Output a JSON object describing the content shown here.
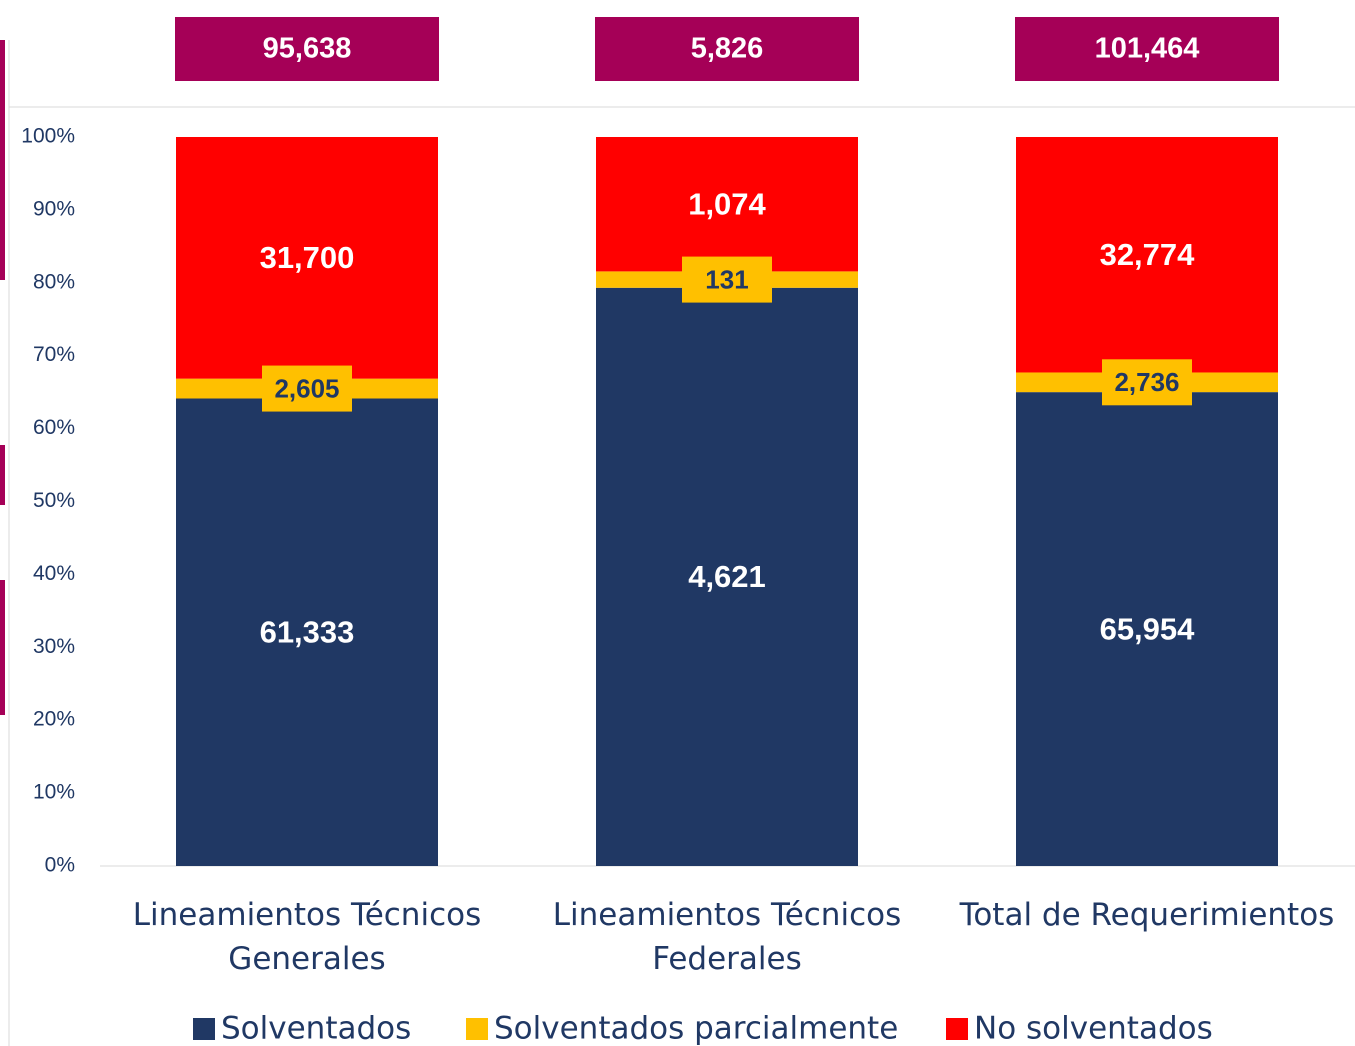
{
  "chart_data": {
    "type": "bar",
    "stacked": "percent",
    "categories": [
      "Lineamientos Técnicos Generales",
      "Lineamientos Técnicos Federales",
      "Total de Requerimientos"
    ],
    "series": [
      {
        "name": "Solventados",
        "color": "#203864",
        "values": [
          61333,
          4621,
          65954
        ],
        "value_labels": [
          "61,333",
          "4,621",
          "65,954"
        ]
      },
      {
        "name": "Solventados parcialmente",
        "color": "#ffc000",
        "values": [
          2605,
          131,
          2736
        ],
        "value_labels": [
          "2,605",
          "131",
          "2,736"
        ]
      },
      {
        "name": "No solventados",
        "color": "#ff0000",
        "values": [
          31700,
          1074,
          32774
        ],
        "value_labels": [
          "31,700",
          "1,074",
          "32,774"
        ]
      }
    ],
    "totals": [
      95638,
      5826,
      101464
    ],
    "total_labels": [
      "95,638",
      "5,826",
      "101,464"
    ],
    "total_color": "#a50057",
    "ylim": [
      0,
      100
    ],
    "yticks": [
      {
        "value": 0,
        "label": "0%"
      },
      {
        "value": 10,
        "label": "10%"
      },
      {
        "value": 20,
        "label": "20%"
      },
      {
        "value": 30,
        "label": "30%"
      },
      {
        "value": 40,
        "label": "40%"
      },
      {
        "value": 50,
        "label": "50%"
      },
      {
        "value": 60,
        "label": "60%"
      },
      {
        "value": 70,
        "label": "70%"
      },
      {
        "value": 80,
        "label": "80%"
      },
      {
        "value": 90,
        "label": "90%"
      },
      {
        "value": 100,
        "label": "100%"
      }
    ],
    "grid": false,
    "legend": "bottom"
  }
}
